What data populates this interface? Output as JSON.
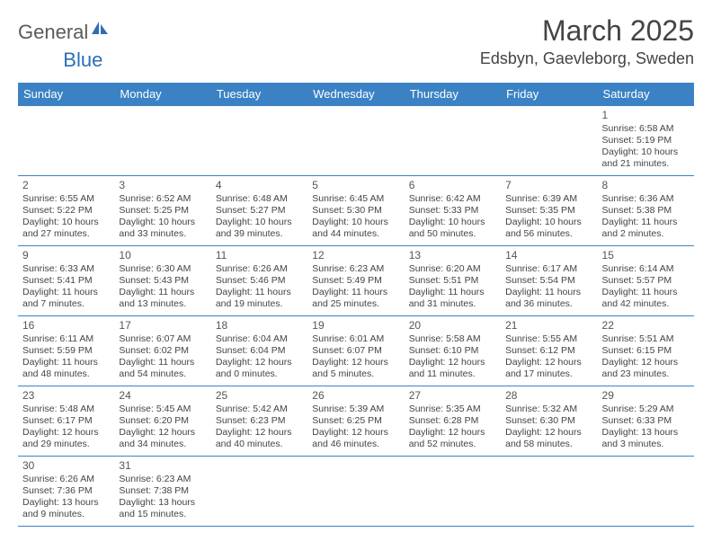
{
  "logo": {
    "part1": "General",
    "part2": "Blue"
  },
  "title": "March 2025",
  "location": "Edsbyn, Gaevleborg, Sweden",
  "colors": {
    "header_bg": "#3b82c4",
    "header_fg": "#ffffff",
    "border": "#3b82c4",
    "logo_gray": "#5a5a5a",
    "logo_blue": "#2d6fb5",
    "text": "#444444"
  },
  "weekdays": [
    "Sunday",
    "Monday",
    "Tuesday",
    "Wednesday",
    "Thursday",
    "Friday",
    "Saturday"
  ],
  "weeks": [
    [
      null,
      null,
      null,
      null,
      null,
      null,
      {
        "n": "1",
        "sr": "Sunrise: 6:58 AM",
        "ss": "Sunset: 5:19 PM",
        "d1": "Daylight: 10 hours",
        "d2": "and 21 minutes."
      }
    ],
    [
      {
        "n": "2",
        "sr": "Sunrise: 6:55 AM",
        "ss": "Sunset: 5:22 PM",
        "d1": "Daylight: 10 hours",
        "d2": "and 27 minutes."
      },
      {
        "n": "3",
        "sr": "Sunrise: 6:52 AM",
        "ss": "Sunset: 5:25 PM",
        "d1": "Daylight: 10 hours",
        "d2": "and 33 minutes."
      },
      {
        "n": "4",
        "sr": "Sunrise: 6:48 AM",
        "ss": "Sunset: 5:27 PM",
        "d1": "Daylight: 10 hours",
        "d2": "and 39 minutes."
      },
      {
        "n": "5",
        "sr": "Sunrise: 6:45 AM",
        "ss": "Sunset: 5:30 PM",
        "d1": "Daylight: 10 hours",
        "d2": "and 44 minutes."
      },
      {
        "n": "6",
        "sr": "Sunrise: 6:42 AM",
        "ss": "Sunset: 5:33 PM",
        "d1": "Daylight: 10 hours",
        "d2": "and 50 minutes."
      },
      {
        "n": "7",
        "sr": "Sunrise: 6:39 AM",
        "ss": "Sunset: 5:35 PM",
        "d1": "Daylight: 10 hours",
        "d2": "and 56 minutes."
      },
      {
        "n": "8",
        "sr": "Sunrise: 6:36 AM",
        "ss": "Sunset: 5:38 PM",
        "d1": "Daylight: 11 hours",
        "d2": "and 2 minutes."
      }
    ],
    [
      {
        "n": "9",
        "sr": "Sunrise: 6:33 AM",
        "ss": "Sunset: 5:41 PM",
        "d1": "Daylight: 11 hours",
        "d2": "and 7 minutes."
      },
      {
        "n": "10",
        "sr": "Sunrise: 6:30 AM",
        "ss": "Sunset: 5:43 PM",
        "d1": "Daylight: 11 hours",
        "d2": "and 13 minutes."
      },
      {
        "n": "11",
        "sr": "Sunrise: 6:26 AM",
        "ss": "Sunset: 5:46 PM",
        "d1": "Daylight: 11 hours",
        "d2": "and 19 minutes."
      },
      {
        "n": "12",
        "sr": "Sunrise: 6:23 AM",
        "ss": "Sunset: 5:49 PM",
        "d1": "Daylight: 11 hours",
        "d2": "and 25 minutes."
      },
      {
        "n": "13",
        "sr": "Sunrise: 6:20 AM",
        "ss": "Sunset: 5:51 PM",
        "d1": "Daylight: 11 hours",
        "d2": "and 31 minutes."
      },
      {
        "n": "14",
        "sr": "Sunrise: 6:17 AM",
        "ss": "Sunset: 5:54 PM",
        "d1": "Daylight: 11 hours",
        "d2": "and 36 minutes."
      },
      {
        "n": "15",
        "sr": "Sunrise: 6:14 AM",
        "ss": "Sunset: 5:57 PM",
        "d1": "Daylight: 11 hours",
        "d2": "and 42 minutes."
      }
    ],
    [
      {
        "n": "16",
        "sr": "Sunrise: 6:11 AM",
        "ss": "Sunset: 5:59 PM",
        "d1": "Daylight: 11 hours",
        "d2": "and 48 minutes."
      },
      {
        "n": "17",
        "sr": "Sunrise: 6:07 AM",
        "ss": "Sunset: 6:02 PM",
        "d1": "Daylight: 11 hours",
        "d2": "and 54 minutes."
      },
      {
        "n": "18",
        "sr": "Sunrise: 6:04 AM",
        "ss": "Sunset: 6:04 PM",
        "d1": "Daylight: 12 hours",
        "d2": "and 0 minutes."
      },
      {
        "n": "19",
        "sr": "Sunrise: 6:01 AM",
        "ss": "Sunset: 6:07 PM",
        "d1": "Daylight: 12 hours",
        "d2": "and 5 minutes."
      },
      {
        "n": "20",
        "sr": "Sunrise: 5:58 AM",
        "ss": "Sunset: 6:10 PM",
        "d1": "Daylight: 12 hours",
        "d2": "and 11 minutes."
      },
      {
        "n": "21",
        "sr": "Sunrise: 5:55 AM",
        "ss": "Sunset: 6:12 PM",
        "d1": "Daylight: 12 hours",
        "d2": "and 17 minutes."
      },
      {
        "n": "22",
        "sr": "Sunrise: 5:51 AM",
        "ss": "Sunset: 6:15 PM",
        "d1": "Daylight: 12 hours",
        "d2": "and 23 minutes."
      }
    ],
    [
      {
        "n": "23",
        "sr": "Sunrise: 5:48 AM",
        "ss": "Sunset: 6:17 PM",
        "d1": "Daylight: 12 hours",
        "d2": "and 29 minutes."
      },
      {
        "n": "24",
        "sr": "Sunrise: 5:45 AM",
        "ss": "Sunset: 6:20 PM",
        "d1": "Daylight: 12 hours",
        "d2": "and 34 minutes."
      },
      {
        "n": "25",
        "sr": "Sunrise: 5:42 AM",
        "ss": "Sunset: 6:23 PM",
        "d1": "Daylight: 12 hours",
        "d2": "and 40 minutes."
      },
      {
        "n": "26",
        "sr": "Sunrise: 5:39 AM",
        "ss": "Sunset: 6:25 PM",
        "d1": "Daylight: 12 hours",
        "d2": "and 46 minutes."
      },
      {
        "n": "27",
        "sr": "Sunrise: 5:35 AM",
        "ss": "Sunset: 6:28 PM",
        "d1": "Daylight: 12 hours",
        "d2": "and 52 minutes."
      },
      {
        "n": "28",
        "sr": "Sunrise: 5:32 AM",
        "ss": "Sunset: 6:30 PM",
        "d1": "Daylight: 12 hours",
        "d2": "and 58 minutes."
      },
      {
        "n": "29",
        "sr": "Sunrise: 5:29 AM",
        "ss": "Sunset: 6:33 PM",
        "d1": "Daylight: 13 hours",
        "d2": "and 3 minutes."
      }
    ],
    [
      {
        "n": "30",
        "sr": "Sunrise: 6:26 AM",
        "ss": "Sunset: 7:36 PM",
        "d1": "Daylight: 13 hours",
        "d2": "and 9 minutes."
      },
      {
        "n": "31",
        "sr": "Sunrise: 6:23 AM",
        "ss": "Sunset: 7:38 PM",
        "d1": "Daylight: 13 hours",
        "d2": "and 15 minutes."
      },
      null,
      null,
      null,
      null,
      null
    ]
  ]
}
